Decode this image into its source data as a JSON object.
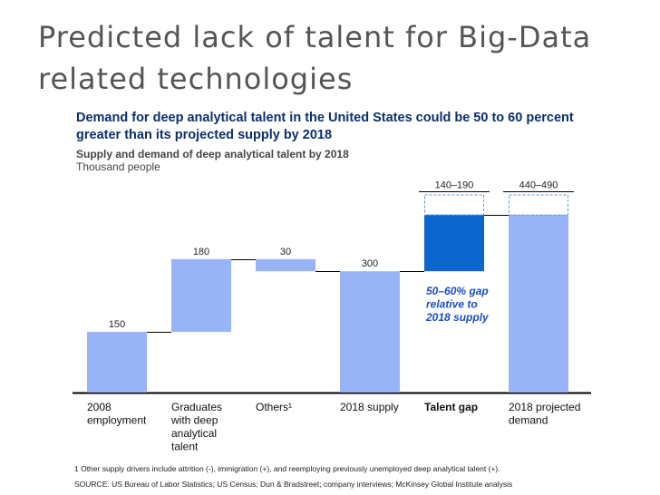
{
  "slide": {
    "title": "Predicted lack of talent for Big-Data related technologies"
  },
  "chart_data": {
    "type": "bar",
    "subtype": "waterfall",
    "title": "Demand for deep analytical talent in the United States could be 50 to 60 percent greater than its projected supply by 2018",
    "subtitle": "Supply and demand of deep analytical talent by 2018",
    "units": "Thousand people",
    "ylim": [
      0,
      490
    ],
    "grid": false,
    "legend": "none",
    "bars": [
      {
        "category": "2008 employment",
        "cat_lines": [
          "2008",
          "employment"
        ],
        "label": "150",
        "bottom": 0,
        "top": 150,
        "kind": "total",
        "bold": false
      },
      {
        "category": "Graduates with deep analytical talent",
        "cat_lines": [
          "Graduates",
          "with deep",
          "analytical",
          "talent"
        ],
        "label": "180",
        "bottom": 150,
        "top": 330,
        "kind": "increment",
        "bold": false
      },
      {
        "category": "Others¹",
        "cat_lines": [
          "Others¹"
        ],
        "label": "30",
        "bottom": 300,
        "top": 330,
        "kind": "decrement",
        "bold": false
      },
      {
        "category": "2018 supply",
        "cat_lines": [
          "2018 supply"
        ],
        "label": "300",
        "bottom": 0,
        "top": 300,
        "kind": "total",
        "bold": false
      },
      {
        "category": "Talent gap",
        "cat_lines": [
          "Talent gap"
        ],
        "label": "140–190",
        "bottom": 300,
        "top": 440,
        "range_top": 490,
        "kind": "gap",
        "bold": true
      },
      {
        "category": "2018 projected demand",
        "cat_lines": [
          "2018 projected",
          "demand"
        ],
        "label": "440–490",
        "bottom": 0,
        "top": 440,
        "range_top": 490,
        "kind": "range_total",
        "bold": false
      }
    ],
    "annotation": [
      "50–60% gap",
      "relative to",
      "2018 supply"
    ],
    "colors": {
      "bar": "#99b3f7",
      "gap": "#0b67cf",
      "annotation": "#1a4fc2",
      "dashed": "#5e9bc9",
      "axis": "#000000"
    }
  },
  "footnote": "1  Other supply drivers include attrition (-), immigration (+), and reemploying previously unemployed deep analytical talent (+).",
  "source": "SOURCE: US Bureau of Labor Statistics; US Census; Dun & Bradstreet; company interviews; McKinsey Global Institute analysis"
}
